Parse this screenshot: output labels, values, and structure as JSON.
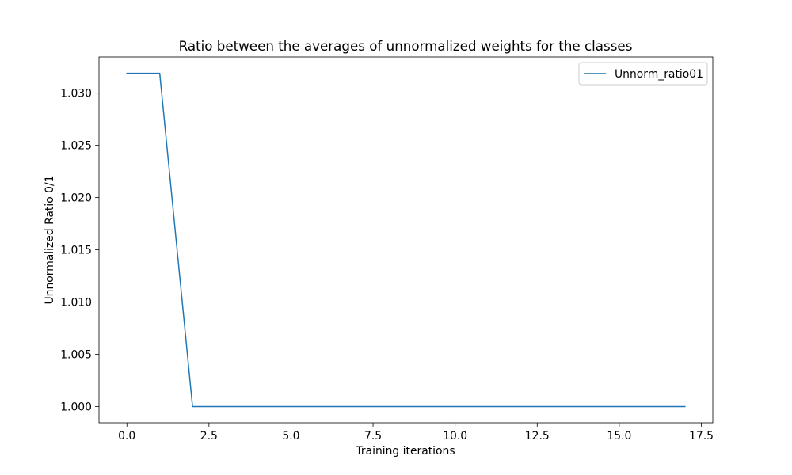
{
  "chart_data": {
    "type": "line",
    "title": "Ratio between the averages of unnormalized weights for the classes",
    "xlabel": "Training iterations",
    "ylabel": "Unnormalized Ratio 0/1",
    "xlim": [
      -0.85,
      17.85
    ],
    "ylim": [
      0.99845,
      1.03346
    ],
    "x_ticks": [
      0.0,
      2.5,
      5.0,
      7.5,
      10.0,
      12.5,
      15.0,
      17.5
    ],
    "x_tick_labels": [
      "0.0",
      "2.5",
      "5.0",
      "7.5",
      "10.0",
      "12.5",
      "15.0",
      "17.5"
    ],
    "y_ticks": [
      1.0,
      1.005,
      1.01,
      1.015,
      1.02,
      1.025,
      1.03
    ],
    "y_tick_labels": [
      "1.000",
      "1.005",
      "1.010",
      "1.015",
      "1.020",
      "1.025",
      "1.030"
    ],
    "grid": false,
    "legend_position": "top-right",
    "series": [
      {
        "name": "Unnorm_ratio01",
        "color": "#1f77b4",
        "x": [
          0,
          1,
          2,
          3,
          4,
          5,
          6,
          7,
          8,
          9,
          10,
          11,
          12,
          13,
          14,
          15,
          16,
          17
        ],
        "y": [
          1.0319,
          1.0319,
          1.0,
          1.0,
          1.0,
          1.0,
          1.0,
          1.0,
          1.0,
          1.0,
          1.0,
          1.0,
          1.0,
          1.0,
          1.0,
          1.0,
          1.0,
          1.0
        ]
      }
    ]
  }
}
